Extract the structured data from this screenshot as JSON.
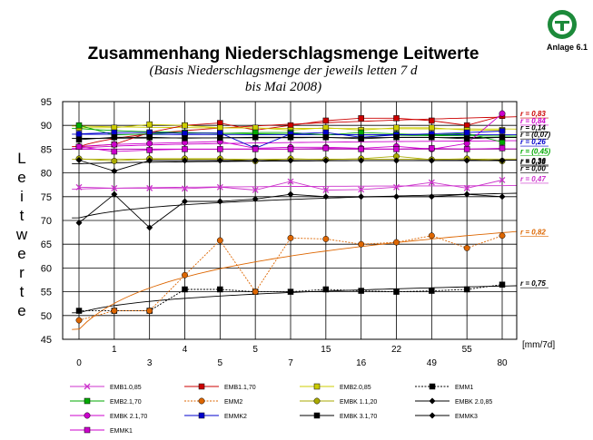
{
  "badge": {
    "label": "Anlage 6.1"
  },
  "chart_data": {
    "type": "line",
    "title": "Zusammenhang Niederschlagsmenge Leitwerte",
    "subtitle_lines": [
      "(Basis Niederschlagsmenge der jeweils letten 7 d",
      "bis Mai 2008)"
    ],
    "ylabel": "Leitwerte",
    "xlabel": "[mm/7d]",
    "ylim": [
      45,
      95
    ],
    "yticks": [
      45,
      50,
      55,
      60,
      65,
      70,
      75,
      80,
      85,
      90,
      95
    ],
    "categories": [
      "0",
      "1",
      "3",
      "4",
      "5",
      "5",
      "7",
      "15",
      "16",
      "22",
      "49",
      "55",
      "80"
    ],
    "grid": "vertical and horizontal",
    "legend_position": "bottom",
    "series": [
      {
        "name": "EMB1.0,85",
        "color": "#cc33cc",
        "marker": "x",
        "values": [
          77,
          76.8,
          76.8,
          76.7,
          77,
          76.4,
          78.2,
          76.4,
          76.5,
          77,
          78,
          76.8,
          78.5
        ],
        "r": "r = 0,47",
        "r_color": "#cc33cc"
      },
      {
        "name": "EMB1.1,70",
        "color": "#cc0000",
        "marker": "square",
        "values": [
          85.5,
          86,
          88.5,
          90,
          90.5,
          89,
          90,
          91,
          91.5,
          91.5,
          91,
          90,
          92
        ],
        "r": "r = 0,83",
        "r_color": "#cc0000"
      },
      {
        "name": "EMB2.0,85",
        "color": "#cccc00",
        "marker": "square",
        "values": [
          89.5,
          89.5,
          90.2,
          90,
          89.5,
          89.5,
          89,
          89.5,
          89,
          89.5,
          89.5,
          89,
          89
        ],
        "r": "r = 0,14",
        "r_color": "#000000"
      },
      {
        "name": "EMM1",
        "color": "#000000",
        "marker": "square",
        "values": [
          51,
          51,
          51,
          55.5,
          55.5,
          55,
          55,
          55.5,
          55.2,
          55,
          55.2,
          55.5,
          56.5
        ],
        "r": "r = 0,75",
        "r_color": "#000000"
      },
      {
        "name": "EMB2.1,70",
        "color": "#00aa00",
        "marker": "square",
        "values": [
          90,
          88,
          88.2,
          88.5,
          88.3,
          88.5,
          88.5,
          88,
          88.5,
          88.2,
          88,
          88.3,
          86.5
        ],
        "r": "r = (0,45)",
        "r_color": "#00aa00"
      },
      {
        "name": "EMM2",
        "color": "#dd6600",
        "marker": "circle",
        "values": [
          49,
          51,
          51,
          58.5,
          65.8,
          55,
          66.3,
          66.1,
          65,
          65.4,
          66.8,
          64.2,
          66.8
        ],
        "r": "r = 0,82",
        "r_color": "#dd6600"
      },
      {
        "name": "EMBK 1.1,20",
        "color": "#aaaa00",
        "marker": "circle",
        "values": [
          83,
          82.5,
          83,
          83,
          83,
          82.5,
          83,
          82.8,
          83,
          83.5,
          82.8,
          83,
          82.5
        ],
        "r": "r = 0,36",
        "r_color": "#000000"
      },
      {
        "name": "EMBK 2.0,85",
        "color": "#000000",
        "marker": "diamond",
        "values": [
          82.7,
          80.4,
          82.6,
          82.6,
          82.6,
          82.6,
          82.6,
          82.6,
          82.6,
          82.6,
          82.6,
          82.6,
          82.6
        ],
        "r": "r = 0,00",
        "r_color": "#000000"
      },
      {
        "name": "EMBK 2.1,70",
        "color": "#cc00cc",
        "marker": "circle",
        "values": [
          85.6,
          86,
          86.2,
          86.4,
          86.6,
          85.2,
          85.4,
          85.4,
          85.2,
          85.6,
          85,
          86.2,
          92.5
        ],
        "r": "r = 0,84",
        "r_color": "#cc00cc"
      },
      {
        "name": "EMMK2",
        "color": "#0000cc",
        "marker": "square",
        "values": [
          88.2,
          88.5,
          88.5,
          88.3,
          88.4,
          85.2,
          88.2,
          88.5,
          87.5,
          88,
          88.2,
          88.5,
          88.8
        ],
        "r": "r = 0,26",
        "r_color": "#0000cc"
      },
      {
        "name": "EMBK 3.1,70",
        "color": "#000000",
        "marker": "square",
        "values": [
          87,
          87.5,
          87.5,
          87.3,
          87.4,
          87.5,
          87.5,
          87.5,
          87.2,
          87.5,
          87.5,
          87.2,
          87.5
        ],
        "r": "r = (0,07)",
        "r_color": "#000000"
      },
      {
        "name": "EMMK3",
        "color": "#000000",
        "marker": "diamond",
        "values": [
          69.5,
          75.5,
          68.5,
          74,
          74,
          74.5,
          75.5,
          75,
          75,
          75,
          75,
          75.5,
          75
        ],
        "r": "r = 0,38",
        "r_color": "#000000"
      },
      {
        "name": "EMMK1",
        "color": "#cc00cc",
        "marker": "square",
        "values": [
          85.5,
          84.5,
          84.8,
          85,
          85,
          85,
          85,
          85.2,
          85,
          85,
          85.2,
          85,
          85.2
        ],
        "r": "r = 0,84",
        "r_color": "#cc00cc"
      }
    ],
    "r_labels": [
      {
        "text": "r = 0,83",
        "color": "#cc0000",
        "at": 92.5
      },
      {
        "text": "r = 0,84",
        "color": "#cc00cc",
        "at": 91.0
      },
      {
        "text": "r = 0,14",
        "color": "#000000",
        "at": 89.6
      },
      {
        "text": "r = (0,07)",
        "color": "#000000",
        "at": 88.1
      },
      {
        "text": "r = 0,26",
        "color": "#0000cc",
        "at": 86.6
      },
      {
        "text": "r = (0,45)",
        "color": "#00aa00",
        "at": 84.6
      },
      {
        "text": "r = 0,36",
        "color": "#000000",
        "at": 82.6
      },
      {
        "text": "r = 0,38",
        "color": "#000000",
        "at": 82.4
      },
      {
        "text": "r = 0,00",
        "color": "#000000",
        "at": 81.0
      },
      {
        "text": "r = 0,47",
        "color": "#cc33cc",
        "at": 78.8
      },
      {
        "text": "r = 0,82",
        "color": "#dd6600",
        "at": 67.6
      },
      {
        "text": "r = 0,75",
        "color": "#000000",
        "at": 56.8
      }
    ]
  }
}
